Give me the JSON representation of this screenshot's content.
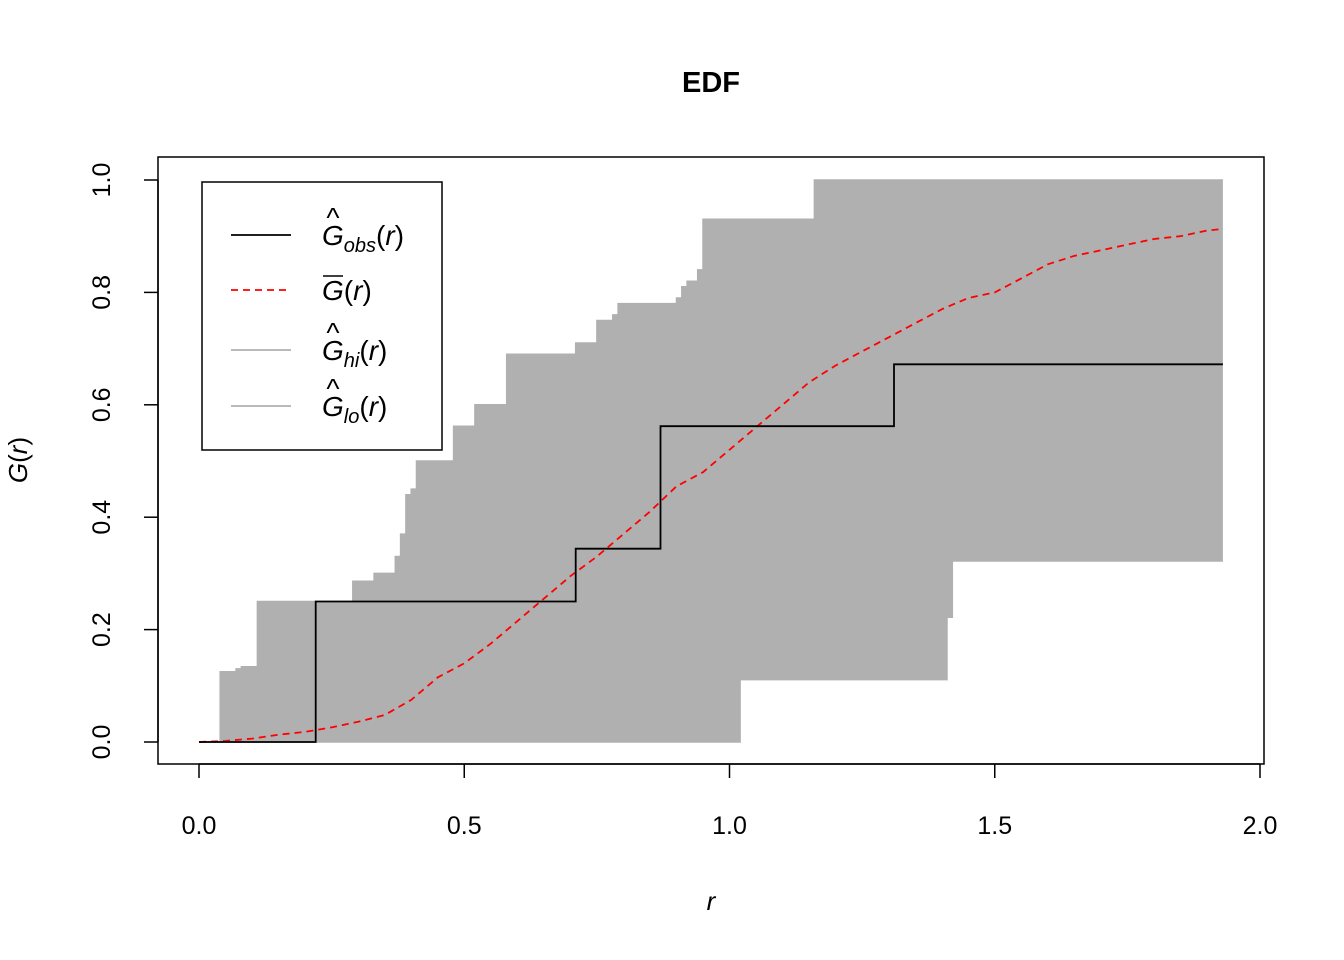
{
  "chart_data": {
    "type": "line",
    "title": "EDF",
    "xlabel": "r",
    "ylabel": "G(r)",
    "xlim": [
      0,
      2
    ],
    "ylim": [
      0,
      1
    ],
    "xticks": [
      "0.0",
      "0.5",
      "1.0",
      "1.5",
      "2.0"
    ],
    "yticks": [
      "0.0",
      "0.2",
      "0.4",
      "0.6",
      "0.8",
      "1.0"
    ],
    "legend_position": "top-left",
    "colors": {
      "obs": "#000000",
      "mean": "#ff0000",
      "envelope": "#b0b0b0"
    },
    "legend": [
      {
        "base": "G",
        "hat": true,
        "bar": false,
        "sub": "obs",
        "arg": "(r)",
        "style": "solid",
        "color": "#000000"
      },
      {
        "base": "G",
        "hat": false,
        "bar": true,
        "sub": "",
        "arg": "(r)",
        "style": "dashed",
        "color": "#ff0000"
      },
      {
        "base": "G",
        "hat": true,
        "bar": false,
        "sub": "hi",
        "arg": "(r)",
        "style": "solid",
        "color": "#b0b0b0"
      },
      {
        "base": "G",
        "hat": true,
        "bar": false,
        "sub": "lo",
        "arg": "(r)",
        "style": "solid",
        "color": "#b0b0b0"
      }
    ],
    "series": [
      {
        "key": "obs",
        "step": true,
        "x": [
          0,
          0.22,
          0.71,
          0.87,
          1.31,
          1.93
        ],
        "y": [
          0,
          0.25,
          0.344,
          0.562,
          0.672,
          0.672
        ]
      },
      {
        "key": "mean",
        "step": false,
        "x": [
          0,
          0.05,
          0.1,
          0.15,
          0.2,
          0.25,
          0.3,
          0.35,
          0.4,
          0.45,
          0.5,
          0.55,
          0.6,
          0.65,
          0.7,
          0.75,
          0.8,
          0.85,
          0.9,
          0.95,
          1.0,
          1.05,
          1.1,
          1.15,
          1.2,
          1.25,
          1.3,
          1.35,
          1.4,
          1.45,
          1.5,
          1.55,
          1.6,
          1.65,
          1.7,
          1.75,
          1.8,
          1.85,
          1.9,
          1.93
        ],
        "y": [
          0,
          0.002,
          0.006,
          0.013,
          0.018,
          0.026,
          0.036,
          0.048,
          0.075,
          0.115,
          0.14,
          0.175,
          0.215,
          0.255,
          0.295,
          0.33,
          0.37,
          0.41,
          0.455,
          0.48,
          0.52,
          0.56,
          0.6,
          0.64,
          0.67,
          0.695,
          0.72,
          0.745,
          0.77,
          0.79,
          0.8,
          0.825,
          0.85,
          0.865,
          0.875,
          0.885,
          0.895,
          0.9,
          0.91,
          0.913
        ]
      },
      {
        "key": "hi",
        "step": true,
        "x": [
          0,
          0.04,
          0.07,
          0.08,
          0.11,
          0.29,
          0.33,
          0.37,
          0.38,
          0.39,
          0.4,
          0.41,
          0.42,
          0.44,
          0.48,
          0.52,
          0.58,
          0.61,
          0.71,
          0.74,
          0.75,
          0.76,
          0.77,
          0.78,
          0.79,
          0.8,
          0.9,
          0.91,
          0.92,
          0.94,
          0.95,
          1.15,
          1.16,
          1.93
        ],
        "y": [
          0,
          0.125,
          0.13,
          0.134,
          0.25,
          0.286,
          0.3,
          0.33,
          0.37,
          0.44,
          0.45,
          0.5,
          0.5,
          0.5,
          0.562,
          0.6,
          0.69,
          0.69,
          0.71,
          0.71,
          0.75,
          0.75,
          0.75,
          0.76,
          0.78,
          0.78,
          0.79,
          0.81,
          0.82,
          0.84,
          0.93,
          0.93,
          1.0,
          1.0
        ]
      },
      {
        "key": "lo",
        "step": true,
        "x": [
          0,
          1.01,
          1.02,
          1.16,
          1.41,
          1.42,
          1.93
        ],
        "y": [
          0,
          0,
          0.111,
          0.111,
          0.222,
          0.322,
          0.322
        ]
      }
    ]
  }
}
